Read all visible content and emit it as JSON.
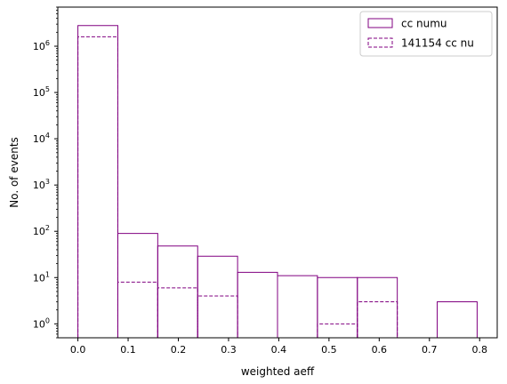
{
  "chart_data": {
    "type": "histogram",
    "xlabel": "weighted aeff",
    "ylabel": "No. of events",
    "yscale": "log",
    "xlim": [
      -0.04,
      0.835
    ],
    "ylim": [
      0.5,
      7000000
    ],
    "xticks": [
      {
        "value": 0.0,
        "label": "0.0"
      },
      {
        "value": 0.1,
        "label": "0.1"
      },
      {
        "value": 0.2,
        "label": "0.2"
      },
      {
        "value": 0.3,
        "label": "0.3"
      },
      {
        "value": 0.4,
        "label": "0.4"
      },
      {
        "value": 0.5,
        "label": "0.5"
      },
      {
        "value": 0.6,
        "label": "0.6"
      },
      {
        "value": 0.7,
        "label": "0.7"
      },
      {
        "value": 0.8,
        "label": "0.8"
      }
    ],
    "yticks": [
      {
        "value": 1,
        "base": "10",
        "exp": "0"
      },
      {
        "value": 10,
        "base": "10",
        "exp": "1"
      },
      {
        "value": 100,
        "base": "10",
        "exp": "2"
      },
      {
        "value": 1000,
        "base": "10",
        "exp": "3"
      },
      {
        "value": 10000,
        "base": "10",
        "exp": "4"
      },
      {
        "value": 100000,
        "base": "10",
        "exp": "5"
      },
      {
        "value": 1000000,
        "base": "10",
        "exp": "6"
      }
    ],
    "legend_position": "top-right",
    "series": [
      {
        "name": "cc numu",
        "style": "solid",
        "color": "#800080",
        "bin_edges": [
          0.0,
          0.0795,
          0.159,
          0.2385,
          0.318,
          0.3975,
          0.477,
          0.5565,
          0.636,
          0.7155,
          0.795
        ],
        "counts": [
          2800000,
          90,
          48,
          29,
          13,
          11,
          10,
          10,
          0,
          3
        ]
      },
      {
        "name": "141154 cc nu",
        "style": "dashed",
        "color": "#800080",
        "bin_edges": [
          0.0,
          0.0795,
          0.159,
          0.2385,
          0.318,
          0.3975,
          0.477,
          0.5565,
          0.636,
          0.7155,
          0.795
        ],
        "counts": [
          1600000,
          8,
          6,
          4,
          0,
          0,
          1,
          3,
          0,
          0
        ]
      }
    ]
  }
}
